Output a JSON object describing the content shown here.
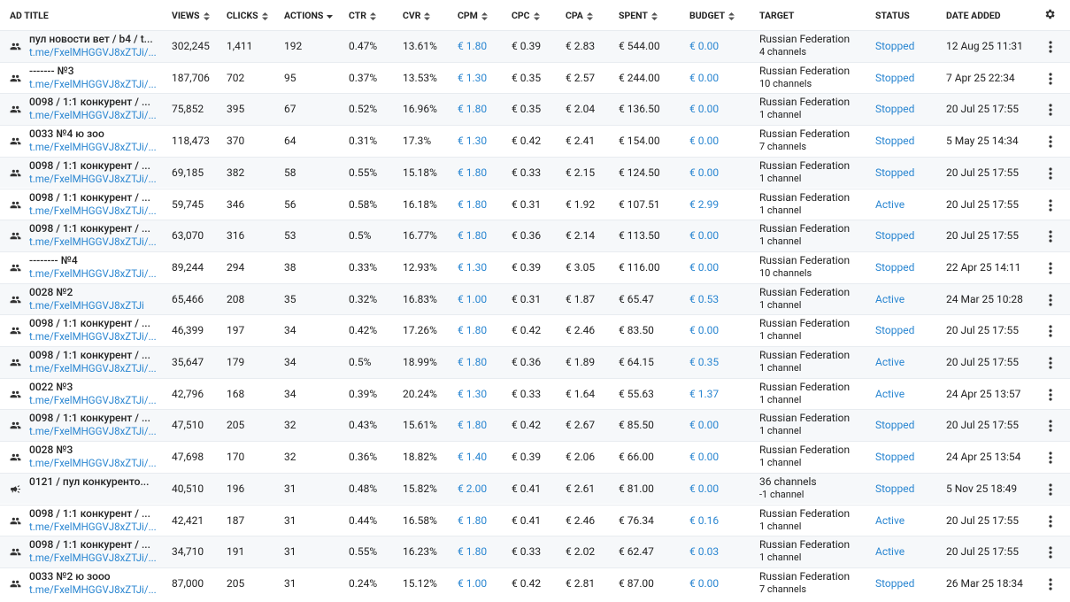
{
  "table": {
    "columns": [
      "AD TITLE",
      "VIEWS",
      "CLICKS",
      "ACTIONS",
      "CTR",
      "CVR",
      "CPM",
      "CPC",
      "CPA",
      "SPENT",
      "BUDGET",
      "TARGET",
      "STATUS",
      "DATE ADDED"
    ],
    "rows": [
      {
        "title": "пул новости вет / b4 / t...",
        "link": "t.me/FxelMHGGVJ8xZTJi/...",
        "cells": [
          "302,245",
          "1,411",
          "192",
          "0.47%",
          "13.61%",
          "€ 1.80",
          "€ 0.39",
          "€ 2.83",
          "€ 544.00",
          "€ 0.00"
        ],
        "target": [
          "Russian Federation",
          "4 channels"
        ],
        "status": "Stopped",
        "date": "12 Aug 25 11:31"
      },
      {
        "title": "------- №3",
        "link": "t.me/FxelMHGGVJ8xZTJi/...",
        "cells": [
          "187,706",
          "702",
          "95",
          "0.37%",
          "13.53%",
          "€ 1.30",
          "€ 0.35",
          "€ 2.57",
          "€ 244.00",
          "€ 0.00"
        ],
        "target": [
          "Russian Federation",
          "10 channels"
        ],
        "status": "Stopped",
        "date": "7 Apr 25 22:34"
      },
      {
        "title": "0098 / 1:1 конкурент / ...",
        "link": "t.me/FxelMHGGVJ8xZTJi/...",
        "cells": [
          "75,852",
          "395",
          "67",
          "0.52%",
          "16.96%",
          "€ 1.80",
          "€ 0.35",
          "€ 2.04",
          "€ 136.50",
          "€ 0.00"
        ],
        "target": [
          "Russian Federation",
          "1 channel"
        ],
        "status": "Stopped",
        "date": "20 Jul 25 17:55"
      },
      {
        "title": "0033 №4 ю зоо",
        "link": "t.me/FxelMHGGVJ8xZTJi/...",
        "cells": [
          "118,473",
          "370",
          "64",
          "0.31%",
          "17.3%",
          "€ 1.30",
          "€ 0.42",
          "€ 2.41",
          "€ 154.00",
          "€ 0.00"
        ],
        "target": [
          "Russian Federation",
          "7 channels"
        ],
        "status": "Stopped",
        "date": "5 May 25 14:34"
      },
      {
        "title": "0098 / 1:1 конкурент / ...",
        "link": "t.me/FxelMHGGVJ8xZTJi/...",
        "cells": [
          "69,185",
          "382",
          "58",
          "0.55%",
          "15.18%",
          "€ 1.80",
          "€ 0.33",
          "€ 2.15",
          "€ 124.50",
          "€ 0.00"
        ],
        "target": [
          "Russian Federation",
          "1 channel"
        ],
        "status": "Stopped",
        "date": "20 Jul 25 17:55"
      },
      {
        "title": "0098 / 1:1 конкурент / ...",
        "link": "t.me/FxelMHGGVJ8xZTJi/...",
        "cells": [
          "59,745",
          "346",
          "56",
          "0.58%",
          "16.18%",
          "€ 1.80",
          "€ 0.31",
          "€ 1.92",
          "€ 107.51",
          "€ 2.99"
        ],
        "target": [
          "Russian Federation",
          "1 channel"
        ],
        "status": "Active",
        "date": "20 Jul 25 17:55"
      },
      {
        "title": "0098 / 1:1 конкурент / ...",
        "link": "t.me/FxelMHGGVJ8xZTJi/...",
        "cells": [
          "63,070",
          "316",
          "53",
          "0.5%",
          "16.77%",
          "€ 1.80",
          "€ 0.36",
          "€ 2.14",
          "€ 113.50",
          "€ 0.00"
        ],
        "target": [
          "Russian Federation",
          "1 channel"
        ],
        "status": "Stopped",
        "date": "20 Jul 25 17:55"
      },
      {
        "title": "-------- №4",
        "link": "t.me/FxelMHGGVJ8xZTJi/...",
        "cells": [
          "89,244",
          "294",
          "38",
          "0.33%",
          "12.93%",
          "€ 1.30",
          "€ 0.39",
          "€ 3.05",
          "€ 116.00",
          "€ 0.00"
        ],
        "target": [
          "Russian Federation",
          "10 channels"
        ],
        "status": "Stopped",
        "date": "22 Apr 25 14:11"
      },
      {
        "title": "0028 №2",
        "link": "t.me/FxelMHGGVJ8xZTJi",
        "cells": [
          "65,466",
          "208",
          "35",
          "0.32%",
          "16.83%",
          "€ 1.00",
          "€ 0.31",
          "€ 1.87",
          "€ 65.47",
          "€ 0.53"
        ],
        "target": [
          "Russian Federation",
          "1 channel"
        ],
        "status": "Active",
        "date": "24 Mar 25 10:28"
      },
      {
        "title": "0098 / 1:1 конкурент / ...",
        "link": "t.me/FxelMHGGVJ8xZTJi/...",
        "cells": [
          "46,399",
          "197",
          "34",
          "0.42%",
          "17.26%",
          "€ 1.80",
          "€ 0.42",
          "€ 2.46",
          "€ 83.50",
          "€ 0.00"
        ],
        "target": [
          "Russian Federation",
          "1 channel"
        ],
        "status": "Stopped",
        "date": "20 Jul 25 17:55"
      },
      {
        "title": "0098 / 1:1 конкурент / ...",
        "link": "t.me/FxelMHGGVJ8xZTJi/...",
        "cells": [
          "35,647",
          "179",
          "34",
          "0.5%",
          "18.99%",
          "€ 1.80",
          "€ 0.36",
          "€ 1.89",
          "€ 64.15",
          "€ 0.35"
        ],
        "target": [
          "Russian Federation",
          "1 channel"
        ],
        "status": "Active",
        "date": "20 Jul 25 17:55"
      },
      {
        "title": "0022 №3",
        "link": "t.me/FxelMHGGVJ8xZTJi/...",
        "cells": [
          "42,796",
          "168",
          "34",
          "0.39%",
          "20.24%",
          "€ 1.30",
          "€ 0.33",
          "€ 1.64",
          "€ 55.63",
          "€ 1.37"
        ],
        "target": [
          "Russian Federation",
          "1 channel"
        ],
        "status": "Active",
        "date": "24 Apr 25 13:57"
      },
      {
        "title": "0098 / 1:1 конкурент / ...",
        "link": "t.me/FxelMHGGVJ8xZTJi/...",
        "cells": [
          "47,510",
          "205",
          "32",
          "0.43%",
          "15.61%",
          "€ 1.80",
          "€ 0.42",
          "€ 2.67",
          "€ 85.50",
          "€ 0.00"
        ],
        "target": [
          "Russian Federation",
          "1 channel"
        ],
        "status": "Stopped",
        "date": "20 Jul 25 17:55"
      },
      {
        "title": "0028 №3",
        "link": "t.me/FxelMHGGVJ8xZTJi/...",
        "cells": [
          "47,698",
          "170",
          "32",
          "0.36%",
          "18.82%",
          "€ 1.40",
          "€ 0.39",
          "€ 2.06",
          "€ 66.00",
          "€ 0.00"
        ],
        "target": [
          "Russian Federation",
          "1 channel"
        ],
        "status": "Stopped",
        "date": "24 Apr 25 13:54"
      },
      {
        "title": "0121 / пул конкуренто...",
        "cells": [
          "40,510",
          "196",
          "31",
          "0.48%",
          "15.82%",
          "€ 2.00",
          "€ 0.41",
          "€ 2.61",
          "€ 81.00",
          "€ 0.00"
        ],
        "target": [
          "36 channels",
          "-1 channel"
        ],
        "status": "Stopped",
        "date": "5 Nov 25 18:49"
      },
      {
        "title": "0098 / 1:1 конкурент / ...",
        "link": "t.me/FxelMHGGVJ8xZTJi/...",
        "cells": [
          "42,421",
          "187",
          "31",
          "0.44%",
          "16.58%",
          "€ 1.80",
          "€ 0.41",
          "€ 2.46",
          "€ 76.34",
          "€ 0.16"
        ],
        "target": [
          "Russian Federation",
          "1 channel"
        ],
        "status": "Active",
        "date": "20 Jul 25 17:55"
      },
      {
        "title": "0098 / 1:1 конкурент / ...",
        "link": "t.me/FxelMHGGVJ8xZTJi/...",
        "cells": [
          "34,710",
          "191",
          "31",
          "0.55%",
          "16.23%",
          "€ 1.80",
          "€ 0.33",
          "€ 2.02",
          "€ 62.47",
          "€ 0.03"
        ],
        "target": [
          "Russian Federation",
          "1 channel"
        ],
        "status": "Active",
        "date": "20 Jul 25 17:55"
      },
      {
        "title": "0033 №2 ю зооо",
        "link": "t.me/FxelMHGGVJ8xZTJi/...",
        "cells": [
          "87,000",
          "205",
          "31",
          "0.24%",
          "15.12%",
          "€ 1.00",
          "€ 0.42",
          "€ 2.81",
          "€ 87.00",
          "€ 0.00"
        ],
        "target": [
          "Russian Federation",
          "7 channels"
        ],
        "status": "Stopped",
        "date": "26 Mar 25 18:34"
      }
    ]
  }
}
